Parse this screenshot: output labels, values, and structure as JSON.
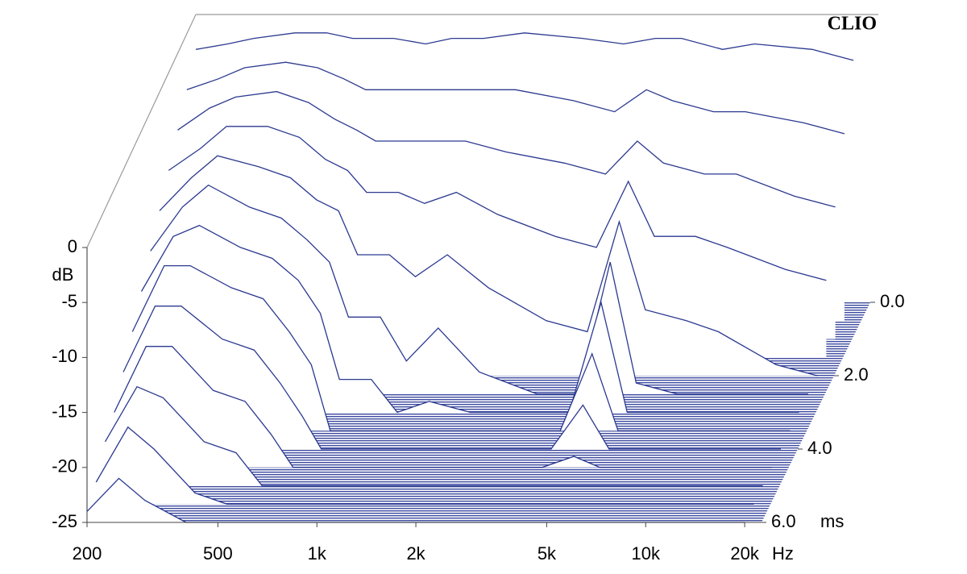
{
  "chart_data": {
    "type": "waterfall",
    "watermark": "CLIO",
    "color": "#2b3990",
    "x": [
      200,
      250,
      300,
      400,
      500,
      600,
      700,
      800,
      1000,
      1200,
      1500,
      2000,
      3000,
      4000,
      5000,
      6000,
      8000,
      10000,
      15000,
      20000
    ],
    "xscale": "log",
    "xlim": [
      200,
      22500
    ],
    "xticks": [
      200,
      500,
      {
        "value": 1000,
        "label": "1k"
      },
      {
        "value": 2000,
        "label": "2k"
      },
      {
        "value": 5000,
        "label": "5k"
      },
      {
        "value": 10000,
        "label": "10k"
      },
      {
        "value": 20000,
        "label": "20k"
      }
    ],
    "x_unit": "Hz",
    "ylim": [
      -25,
      0
    ],
    "yticks": [
      0,
      -5,
      -10,
      -15,
      -20,
      -25
    ],
    "y_unit": "dB",
    "zlim": [
      0,
      6
    ],
    "zticks": [
      {
        "value": 0,
        "label": "0.0"
      },
      {
        "value": 2,
        "label": "2.0"
      },
      {
        "value": 4,
        "label": "4.0"
      },
      {
        "value": 6,
        "label": "6.0"
      }
    ],
    "z_unit": "ms",
    "series": [
      {
        "time": 0,
        "values": [
          -2,
          -1.5,
          -1,
          -0.5,
          -0.5,
          -1,
          -1,
          -1,
          -1.5,
          -1,
          -1,
          -0.5,
          -1,
          -1.5,
          -1,
          -1,
          -2,
          -1.5,
          -2,
          -3
        ]
      },
      {
        "time": 0.5,
        "values": [
          -4,
          -3,
          -2,
          -1.5,
          -2,
          -3,
          -4,
          -4,
          -4,
          -4,
          -4,
          -4,
          -5,
          -6,
          -4,
          -5,
          -6,
          -6,
          -7,
          -8
        ]
      },
      {
        "time": 1,
        "values": [
          -6,
          -4,
          -3,
          -2.5,
          -3.5,
          -5,
          -6,
          -7,
          -7,
          -7,
          -7,
          -8,
          -9,
          -10,
          -7,
          -9,
          -10,
          -10,
          -12,
          -13
        ]
      },
      {
        "time": 1.5,
        "values": [
          -8,
          -6,
          -4,
          -4,
          -5,
          -7,
          -8,
          -10,
          -10,
          -11,
          -10,
          -12,
          -14,
          -15,
          -9,
          -14,
          -14,
          -15,
          -17,
          -18
        ]
      },
      {
        "time": 2,
        "values": [
          -10,
          -7,
          -5,
          -6,
          -7,
          -9,
          -10,
          -14,
          -14,
          -16,
          -14,
          -17,
          -20,
          -21,
          -11,
          -19,
          -20,
          -21,
          -24,
          -25
        ]
      },
      {
        "time": 2.5,
        "values": [
          -12,
          -8,
          -6,
          -8,
          -9,
          -11,
          -13,
          -18,
          -18,
          -22,
          -19,
          -23,
          -25,
          -25,
          -13,
          -24,
          -25,
          -25,
          -25,
          -25
        ]
      },
      {
        "time": 3,
        "values": [
          -14,
          -9,
          -8,
          -10,
          -11,
          -13,
          -16,
          -22,
          -22,
          -25,
          -24,
          -25,
          -25,
          -25,
          -15,
          -25,
          -25,
          -25,
          -25,
          -25
        ]
      },
      {
        "time": 3.5,
        "values": [
          -16,
          -10,
          -10,
          -12,
          -13,
          -16,
          -19,
          -25,
          -25,
          -25,
          -25,
          -25,
          -25,
          -25,
          -18,
          -25,
          -25,
          -25,
          -25,
          -25
        ]
      },
      {
        "time": 4,
        "values": [
          -18,
          -12,
          -12,
          -15,
          -16,
          -19,
          -22,
          -25,
          -25,
          -25,
          -25,
          -25,
          -25,
          -25,
          -21,
          -25,
          -25,
          -25,
          -25,
          -25
        ]
      },
      {
        "time": 4.5,
        "values": [
          -20,
          -14,
          -14,
          -18,
          -19,
          -22,
          -25,
          -25,
          -25,
          -25,
          -25,
          -25,
          -25,
          -25,
          -24,
          -25,
          -25,
          -25,
          -25,
          -25
        ]
      },
      {
        "time": 5,
        "values": [
          -21,
          -16,
          -17,
          -21,
          -22,
          -25,
          -25,
          -25,
          -25,
          -25,
          -25,
          -25,
          -25,
          -25,
          -25,
          -25,
          -25,
          -25,
          -25,
          -25
        ]
      },
      {
        "time": 5.5,
        "values": [
          -23,
          -18,
          -20,
          -24,
          -25,
          -25,
          -25,
          -25,
          -25,
          -25,
          -25,
          -25,
          -25,
          -25,
          -25,
          -25,
          -25,
          -25,
          -25,
          -25
        ]
      },
      {
        "time": 6,
        "values": [
          -24,
          -21,
          -23,
          -25,
          -25,
          -25,
          -25,
          -25,
          -25,
          -25,
          -25,
          -25,
          -25,
          -25,
          -25,
          -25,
          -25,
          -25,
          -25,
          -25
        ]
      }
    ]
  }
}
